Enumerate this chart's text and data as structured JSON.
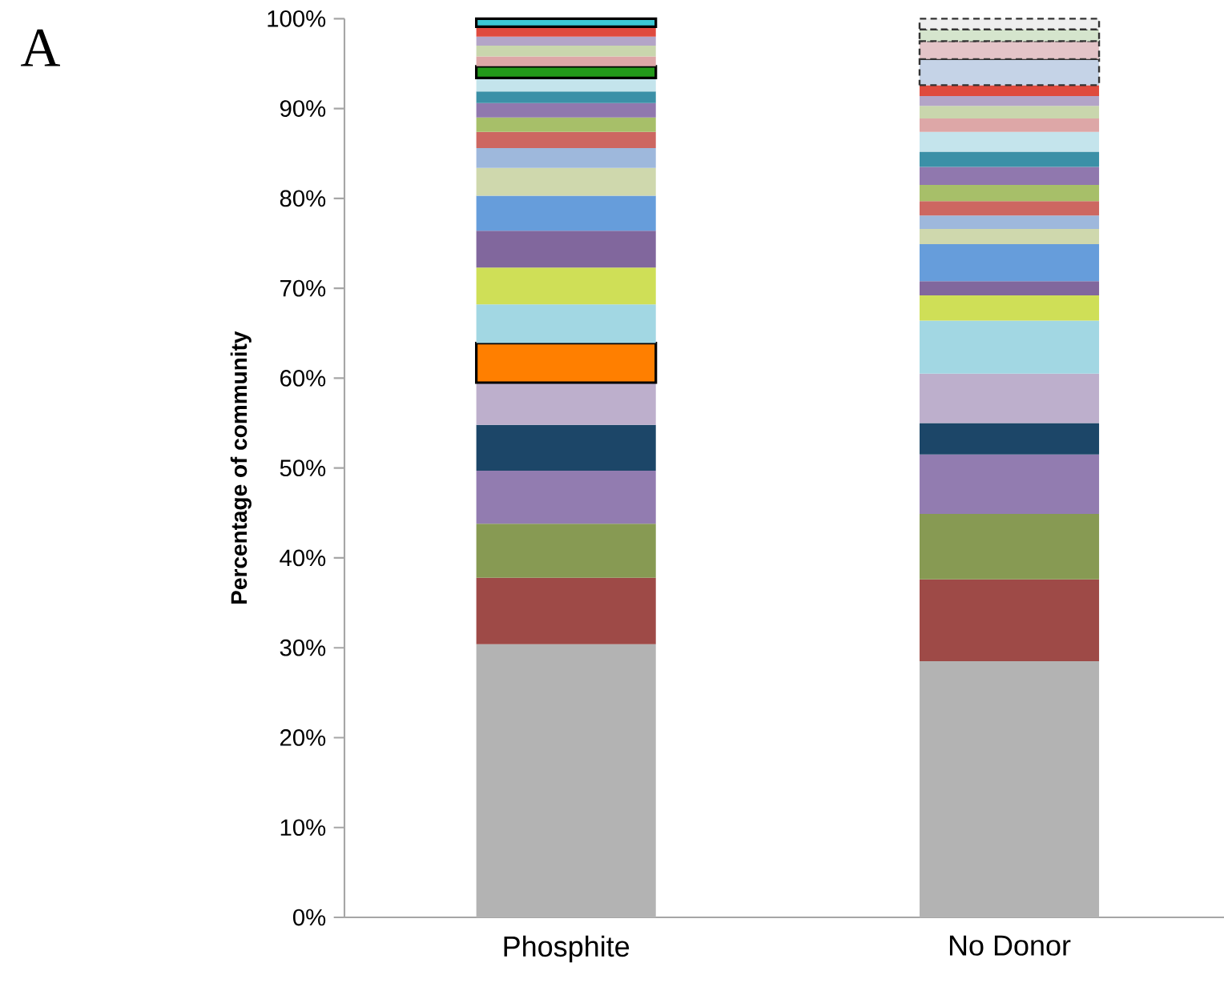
{
  "chart_data": {
    "type": "bar",
    "stacked": true,
    "ylabel": "Percentage of community",
    "annotations": [
      "A"
    ],
    "categories": [
      "Phosphite",
      "No Donor"
    ],
    "ylim": [
      0,
      100
    ],
    "yticks": [
      {
        "value": 0,
        "label": "0%"
      },
      {
        "value": 10,
        "label": "10%"
      },
      {
        "value": 20,
        "label": "20%"
      },
      {
        "value": 30,
        "label": "30%"
      },
      {
        "value": 40,
        "label": "40%"
      },
      {
        "value": 50,
        "label": "50%"
      },
      {
        "value": 60,
        "label": "60%"
      },
      {
        "value": 70,
        "label": "70%"
      },
      {
        "value": 80,
        "label": "80%"
      },
      {
        "value": 90,
        "label": "90%"
      },
      {
        "value": 100,
        "label": "100%"
      }
    ],
    "grid": false,
    "series": [
      {
        "color": "#b3b3b3",
        "values": [
          30.4,
          28.5
        ]
      },
      {
        "color": "#9e4a47",
        "values": [
          7.4,
          9.1
        ]
      },
      {
        "color": "#879a53",
        "values": [
          6.0,
          7.3
        ]
      },
      {
        "color": "#927cb0",
        "values": [
          5.9,
          6.6
        ]
      },
      {
        "color": "#1c4668",
        "values": [
          5.1,
          3.5
        ]
      },
      {
        "color": "#bdafcc",
        "values": [
          4.7,
          5.5
        ]
      },
      {
        "color": "#ff7f00",
        "values": [
          4.4,
          null
        ],
        "line_style": "solid"
      },
      {
        "color": "#a2d7e3",
        "values": [
          4.3,
          5.9
        ]
      },
      {
        "color": "#cfdf57",
        "values": [
          4.1,
          2.8
        ]
      },
      {
        "color": "#81679d",
        "values": [
          4.1,
          1.6
        ]
      },
      {
        "color": "#669ddb",
        "values": [
          3.9,
          4.1
        ]
      },
      {
        "color": "#cfd8ad",
        "values": [
          3.1,
          1.7
        ]
      },
      {
        "color": "#9eb8dc",
        "values": [
          2.2,
          1.5
        ]
      },
      {
        "color": "#cd6761",
        "values": [
          1.8,
          1.6
        ]
      },
      {
        "color": "#a7bf69",
        "values": [
          1.6,
          1.8
        ]
      },
      {
        "color": "#9078ae",
        "values": [
          1.6,
          2.0
        ]
      },
      {
        "color": "#3b90a7",
        "values": [
          1.3,
          1.7
        ]
      },
      {
        "color": "#c4e4ec",
        "values": [
          1.5,
          2.2
        ]
      },
      {
        "color": "#23991a",
        "values": [
          1.3,
          null
        ],
        "line_style": "solid"
      },
      {
        "color": "#dda7a7",
        "values": [
          1.1,
          1.5
        ]
      },
      {
        "color": "#c9d6ad",
        "values": [
          1.2,
          1.4
        ]
      },
      {
        "color": "#b3a4c7",
        "values": [
          1.0,
          1.1
        ]
      },
      {
        "color": "#df4a3e",
        "values": [
          1.1,
          1.2
        ]
      },
      {
        "color": "#3cc8d4",
        "values": [
          0.9,
          null
        ],
        "line_style": "solid"
      },
      {
        "color": "#c5d3e7",
        "values": [
          null,
          2.9
        ],
        "line_style": "dashed"
      },
      {
        "color": "#e4c4c8",
        "values": [
          null,
          2.0
        ],
        "line_style": "dashed"
      },
      {
        "color": "#d5e5cd",
        "values": [
          null,
          1.3
        ],
        "line_style": "dashed"
      },
      {
        "color": "#eeeeee",
        "values": [
          null,
          1.2
        ],
        "line_style": "dashed"
      }
    ]
  }
}
